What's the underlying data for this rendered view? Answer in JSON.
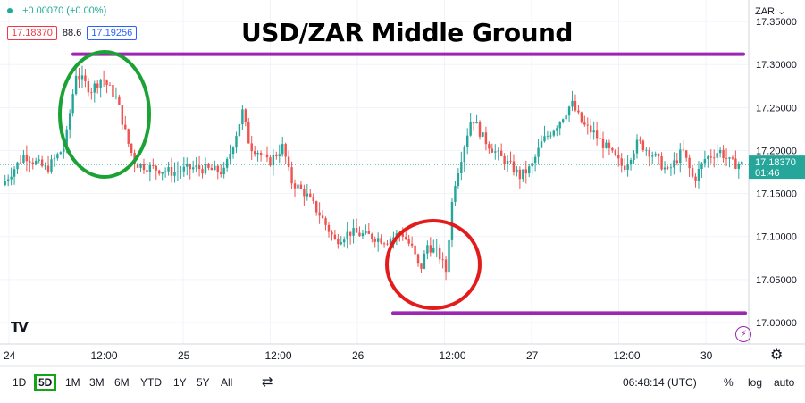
{
  "chart_data": {
    "type": "candlestick",
    "title": "USD/ZAR Middle Ground",
    "currency": "ZAR",
    "change": "+0.00070 (+0.00%)",
    "sell_price": "17.18370",
    "spread": "88.6",
    "buy_price": "17.19256",
    "last_price": "17.18370",
    "countdown": "01:46",
    "ylim": [
      16.975,
      17.375
    ],
    "y_ticks": [
      "17.35000",
      "17.30000",
      "17.25000",
      "17.20000",
      "17.15000",
      "17.10000",
      "17.05000",
      "17.00000"
    ],
    "x_ticks": [
      "24",
      "12:00",
      "25",
      "12:00",
      "26",
      "12:00",
      "27",
      "12:00",
      "30"
    ],
    "resistance": 17.312,
    "support": 17.011,
    "price_path": [
      [
        0,
        17.16
      ],
      [
        0.03,
        17.195
      ],
      [
        0.06,
        17.178
      ],
      [
        0.085,
        17.205
      ],
      [
        0.1,
        17.29
      ],
      [
        0.12,
        17.27
      ],
      [
        0.135,
        17.285
      ],
      [
        0.155,
        17.26
      ],
      [
        0.17,
        17.21
      ],
      [
        0.18,
        17.185
      ],
      [
        0.2,
        17.18
      ],
      [
        0.23,
        17.175
      ],
      [
        0.26,
        17.18
      ],
      [
        0.3,
        17.175
      ],
      [
        0.315,
        17.215
      ],
      [
        0.325,
        17.245
      ],
      [
        0.335,
        17.205
      ],
      [
        0.345,
        17.2
      ],
      [
        0.36,
        17.185
      ],
      [
        0.38,
        17.205
      ],
      [
        0.39,
        17.165
      ],
      [
        0.41,
        17.15
      ],
      [
        0.43,
        17.125
      ],
      [
        0.45,
        17.095
      ],
      [
        0.47,
        17.105
      ],
      [
        0.5,
        17.1
      ],
      [
        0.52,
        17.095
      ],
      [
        0.54,
        17.105
      ],
      [
        0.555,
        17.085
      ],
      [
        0.565,
        17.06
      ],
      [
        0.575,
        17.09
      ],
      [
        0.59,
        17.08
      ],
      [
        0.6,
        17.06
      ],
      [
        0.61,
        17.155
      ],
      [
        0.62,
        17.19
      ],
      [
        0.635,
        17.24
      ],
      [
        0.65,
        17.215
      ],
      [
        0.67,
        17.195
      ],
      [
        0.69,
        17.18
      ],
      [
        0.7,
        17.17
      ],
      [
        0.715,
        17.18
      ],
      [
        0.73,
        17.21
      ],
      [
        0.75,
        17.23
      ],
      [
        0.77,
        17.255
      ],
      [
        0.785,
        17.23
      ],
      [
        0.8,
        17.22
      ],
      [
        0.82,
        17.2
      ],
      [
        0.84,
        17.18
      ],
      [
        0.86,
        17.21
      ],
      [
        0.88,
        17.195
      ],
      [
        0.9,
        17.175
      ],
      [
        0.92,
        17.2
      ],
      [
        0.935,
        17.165
      ],
      [
        0.95,
        17.19
      ],
      [
        0.97,
        17.2
      ],
      [
        0.985,
        17.185
      ],
      [
        1.0,
        17.184
      ]
    ]
  },
  "toolbar": {
    "timeframes": [
      "1D",
      "5D",
      "1M",
      "3M",
      "6M",
      "YTD",
      "1Y",
      "5Y",
      "All"
    ],
    "active": "5D",
    "time": "06:48:14 (UTC)",
    "percent": "%",
    "log": "log",
    "auto": "auto"
  },
  "colors": {
    "up": "#26a69a",
    "down": "#ef5350",
    "level_line": "#9c27b0",
    "circle_green": "#1aa334",
    "circle_red": "#e31b1b",
    "price_label": "#26a69a"
  },
  "logo": "TV"
}
